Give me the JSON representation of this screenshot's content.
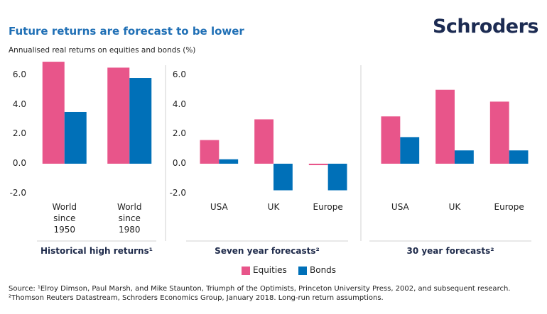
{
  "title": "Future returns are forecast to be lower",
  "brand": "Schroders",
  "subtitle": "Annualised real returns on equities and bonds (%)",
  "source": [
    "Source: ¹Elroy Dimson, Paul Marsh, and Mike Staunton, Triumph of the Optimists, Princeton University Press, 2002, and subsequent research.",
    "²Thomson Reuters Datastream, Schroders Economics Group, January 2018. Long-run return assumptions."
  ],
  "chart_data": [
    {
      "type": "bar",
      "title": "Historical high returns¹",
      "categories": [
        "World since 1950",
        "World since 1980"
      ],
      "series": [
        {
          "name": "Equities",
          "color": "#e8558a",
          "values": [
            6.9,
            6.5
          ]
        },
        {
          "name": "Bonds",
          "color": "#0070b8",
          "values": [
            3.5,
            5.8
          ]
        }
      ],
      "ylim": [
        -2.4,
        7.0
      ],
      "yticks": [
        {
          "value": 6,
          "label": "6.0"
        },
        {
          "value": 4,
          "label": "4.0"
        },
        {
          "value": 2,
          "label": "2.0"
        },
        {
          "value": 0,
          "label": "0.0"
        },
        {
          "value": -2,
          "label": "-2.0"
        }
      ],
      "grid": false
    },
    {
      "type": "bar",
      "title": "Seven year forecasts²",
      "categories": [
        "USA",
        "UK",
        "Europe"
      ],
      "series": [
        {
          "name": "Equities",
          "color": "#e8558a",
          "values": [
            1.6,
            3.0,
            -0.1
          ]
        },
        {
          "name": "Bonds",
          "color": "#0070b8",
          "values": [
            0.3,
            -1.8,
            -1.8
          ]
        }
      ],
      "ylim": [
        -2.4,
        7.0
      ],
      "yticks": [
        {
          "value": 6,
          "label": "6.0"
        },
        {
          "value": 4,
          "label": "4.0"
        },
        {
          "value": 2,
          "label": "2.0"
        },
        {
          "value": 0,
          "label": "0.0"
        },
        {
          "value": -2,
          "label": "-2.0"
        }
      ],
      "grid": false
    },
    {
      "type": "bar",
      "title": "30 year forecasts²",
      "categories": [
        "USA",
        "UK",
        "Europe"
      ],
      "series": [
        {
          "name": "Equities",
          "color": "#e8558a",
          "values": [
            3.2,
            5.0,
            4.2
          ]
        },
        {
          "name": "Bonds",
          "color": "#0070b8",
          "values": [
            1.8,
            0.9,
            0.9
          ]
        }
      ],
      "ylim": [
        -2.4,
        7.0
      ],
      "grid": false
    }
  ]
}
